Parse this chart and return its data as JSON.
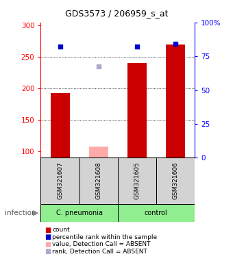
{
  "title": "GDS3573 / 206959_s_at",
  "samples": [
    "GSM321607",
    "GSM321608",
    "GSM321605",
    "GSM321606"
  ],
  "bar_values": [
    193,
    108,
    240,
    270
  ],
  "bar_absent": [
    false,
    true,
    false,
    false
  ],
  "percentile_values": [
    82,
    null,
    82,
    84
  ],
  "rank_absent_value": [
    null,
    235,
    null,
    null
  ],
  "ylim_left": [
    90,
    305
  ],
  "ylim_right": [
    0,
    100
  ],
  "yticks_left": [
    100,
    150,
    200,
    250,
    300
  ],
  "yticks_right": [
    0,
    25,
    50,
    75,
    100
  ],
  "dotted_levels": [
    150,
    200,
    250
  ],
  "bar_color": "#CC0000",
  "bar_absent_color": "#FFAAAA",
  "dot_color": "#0000CC",
  "dot_absent_color": "#AAAACC",
  "legend_items": [
    {
      "color": "#CC0000",
      "label": "count"
    },
    {
      "color": "#0000CC",
      "label": "percentile rank within the sample"
    },
    {
      "color": "#FFAAAA",
      "label": "value, Detection Call = ABSENT"
    },
    {
      "color": "#AAAACC",
      "label": "rank, Detection Call = ABSENT"
    }
  ],
  "group_label": "infection",
  "cpneumonia_label": "C. pneumonia",
  "control_label": "control",
  "group_color": "#90EE90",
  "sample_box_color": "#D3D3D3"
}
